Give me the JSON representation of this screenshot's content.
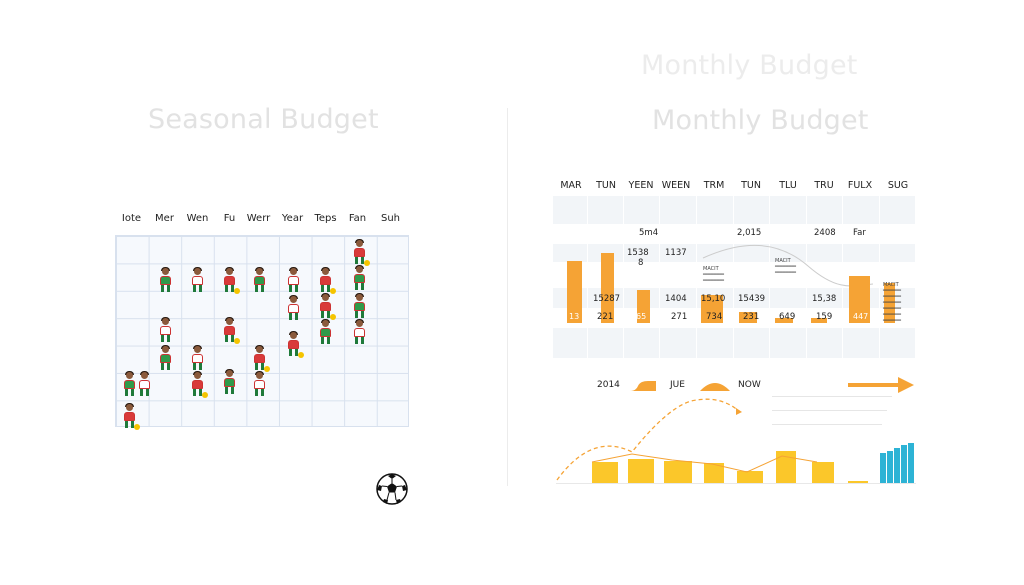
{
  "titles": {
    "left": "Seasonal Budget",
    "right_top": "Monthly Budget",
    "right": "Monthly Budget"
  },
  "season": {
    "headers": [
      "Iote",
      "Mer",
      "Wen",
      "Fu",
      "Werr",
      "Year",
      "Teps",
      "Fan",
      "Suh"
    ]
  },
  "monthly": {
    "headers": [
      "MAR",
      "TUN",
      "YEEN",
      "WEEN",
      "TRM",
      "TUN",
      "TLU",
      "TRU",
      "FULX",
      "SUG"
    ],
    "row_top": [
      {
        "col": 2,
        "text": "5m4"
      },
      {
        "col": 4,
        "text": "2,015"
      },
      {
        "col": 6,
        "text": "2408"
      },
      {
        "col": 7,
        "text": "Far"
      }
    ],
    "pair_labels": [
      "1538",
      "8",
      "1137"
    ],
    "mid_values": [
      "15287",
      "1404",
      "15,10",
      "15439",
      "15,38"
    ],
    "bottom_values": [
      "13",
      "221",
      "65",
      "271",
      "734",
      "231",
      "649",
      "159",
      "447"
    ],
    "tiny_notes": [
      "MACIT",
      "MACIT",
      "MACIT"
    ],
    "bars": [
      0.7,
      0.8,
      0.38,
      0.32,
      0.13,
      0.06,
      0.06,
      0.53,
      0.45
    ]
  },
  "strip": {
    "labels": [
      "2014",
      "JUE",
      "NOW"
    ],
    "yellow_bars": [
      0.45,
      0.53,
      0.48,
      0.44,
      0.27,
      0.7,
      0.46,
      0.05
    ],
    "blue_bars": [
      0.65,
      0.7,
      0.77,
      0.82,
      0.86
    ]
  },
  "colors": {
    "orange": "#f5a335",
    "yellow": "#fbc72a",
    "blue": "#2db3d5",
    "grid_line": "#d8e1ee",
    "ghost_text": "#e2e2e2"
  }
}
